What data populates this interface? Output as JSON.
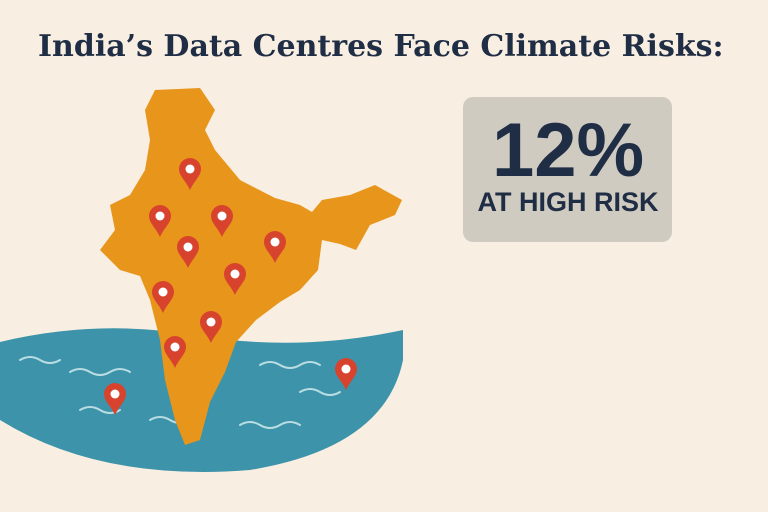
{
  "header": {
    "title": "India’s Data Centres Face Climate Risks:"
  },
  "stat": {
    "value": "12%",
    "label": "AT HIGH RISK"
  }
}
